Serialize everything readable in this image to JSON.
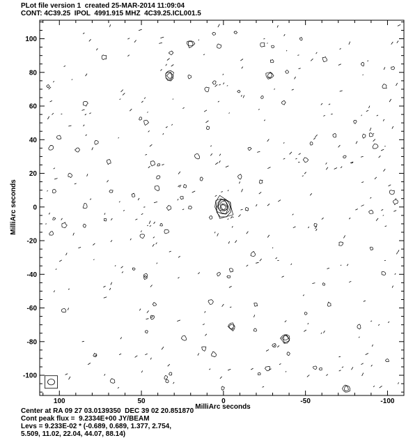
{
  "header": {
    "line1": "PLot file version 1  created 25-MAR-2014 11:09:04",
    "line2": "CONT: 4C39.25  IPOL  4991.915 MHZ  4C39.25.ICL001.5"
  },
  "footer": {
    "line1": "Center at RA 09 27 03.0139350  DEC 39 02 20.851870",
    "line2": "Cont peak flux =  9.2334E+00 JY/BEAM",
    "line3": "Levs = 9.233E-02 * (-0.689, 0.689, 1.377, 2.754,",
    "line4": "5.509, 11.02, 22.04, 44.07, 88.14)"
  },
  "colors": {
    "line": "#000000",
    "background": "#ffffff"
  },
  "chart_data": {
    "type": "contour",
    "xlabel": "MilliArc seconds",
    "ylabel": "MilliArc seconds",
    "xlim": [
      112,
      -110
    ],
    "ylim": [
      -112,
      111
    ],
    "xticks": [
      100,
      50,
      0,
      -50,
      -100
    ],
    "xtick_labels": [
      "100",
      "50",
      "0",
      "-50",
      "-100"
    ],
    "yticks": [
      100,
      80,
      60,
      40,
      20,
      0,
      -20,
      -40,
      -60,
      -80,
      -100
    ],
    "ytick_labels": [
      "100",
      "80",
      "60",
      "40",
      "20",
      "0",
      "-20",
      "-40",
      "-60",
      "-80",
      "-100"
    ],
    "peak": {
      "x": 0,
      "y": 0,
      "levels": 7
    },
    "features": [
      {
        "x": 33,
        "y": 78,
        "levels": 3
      },
      {
        "x": 20,
        "y": 97,
        "levels": 2
      },
      {
        "x": -38,
        "y": -78,
        "levels": 3
      },
      {
        "x": -28,
        "y": 78,
        "levels": 2
      },
      {
        "x": 105,
        "y": 35,
        "levels": 1
      },
      {
        "x": -75,
        "y": -108,
        "levels": 2
      },
      {
        "x": -5,
        "y": -71,
        "levels": 2
      },
      {
        "x": 24,
        "y": -78,
        "levels": 1
      },
      {
        "x": -27,
        "y": -96,
        "levels": 1
      },
      {
        "x": -18,
        "y": -28,
        "levels": 1
      },
      {
        "x": -10,
        "y": 18,
        "levels": 1
      },
      {
        "x": 16,
        "y": 30,
        "levels": 1
      },
      {
        "x": 10,
        "y": 70,
        "levels": 1
      },
      {
        "x": -50,
        "y": 28,
        "levels": 1
      }
    ],
    "beam": {
      "label": "beam ellipse",
      "x": 105,
      "y": -104
    }
  }
}
